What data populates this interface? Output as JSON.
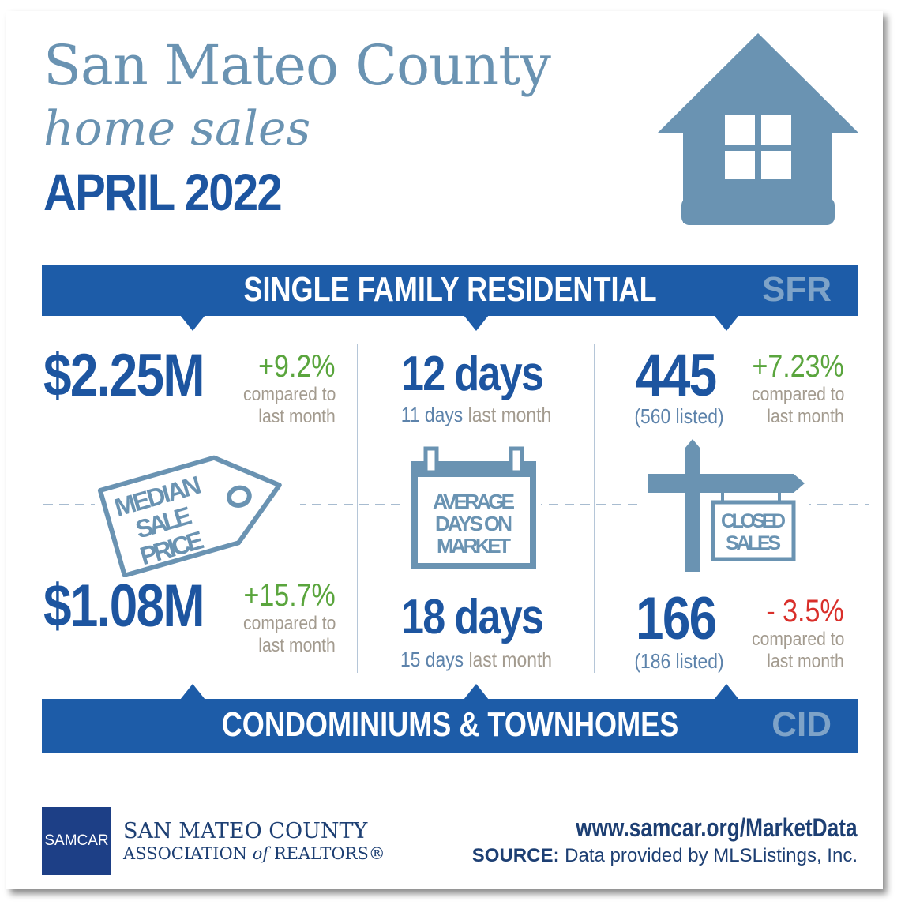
{
  "header": {
    "line1": "San Mateo County",
    "line2": "home sales",
    "period": "APRIL 2022"
  },
  "sfr_band": {
    "title": "SINGLE FAMILY RESIDENTIAL",
    "code": "SFR"
  },
  "cid_band": {
    "title": "CONDOMINIUMS & TOWNHOMES",
    "code": "CID"
  },
  "labels": {
    "median": [
      "MEDIAN",
      "SALE",
      "PRICE"
    ],
    "days": [
      "AVERAGE",
      "DAYS ON",
      "MARKET"
    ],
    "closed": [
      "CLOSED",
      "SALES"
    ]
  },
  "sfr": {
    "median_price": "$2.25M",
    "median_change": "+9.2%",
    "median_cmp1": "compared to",
    "median_cmp2": "last month",
    "days": "12 days",
    "days_prev_num": "11 days",
    "days_prev_txt": "last month",
    "closed": "445",
    "closed_listed": "(560 listed)",
    "closed_change": "+7.23%",
    "closed_cmp1": "compared to",
    "closed_cmp2": "last month"
  },
  "cid": {
    "median_price": "$1.08M",
    "median_change": "+15.7%",
    "median_cmp1": "compared to",
    "median_cmp2": "last month",
    "days": "18 days",
    "days_prev_num": "15 days",
    "days_prev_txt": "last month",
    "closed": "166",
    "closed_listed": "(186 listed)",
    "closed_change": "- 3.5%",
    "closed_cmp1": "compared to",
    "closed_cmp2": "last month"
  },
  "footer": {
    "logo_text": "SAMCAR",
    "org_name": "SAN MATEO COUNTY",
    "assoc_pre": "ASSOCIATION ",
    "assoc_of": "of",
    "assoc_post": " REALTORS®",
    "url": "www.samcar.org/MarketData",
    "source_label": "SOURCE:",
    "source_text": " Data provided by MLSListings, Inc."
  },
  "colors": {
    "primary_blue": "#1d55a0",
    "band_blue": "#1d5ca8",
    "icon_blue": "#6a93b2",
    "positive_green": "#5aa53d",
    "negative_red": "#d92f2a",
    "muted_tan": "#a39b8f"
  }
}
